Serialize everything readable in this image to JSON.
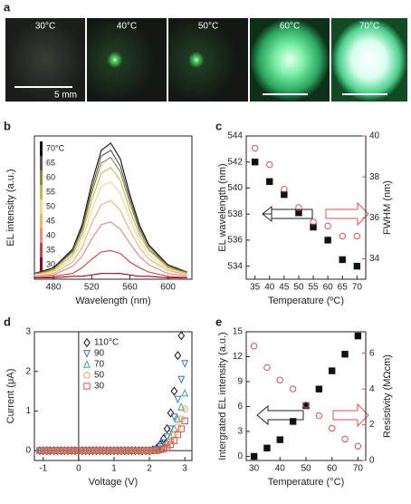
{
  "photos": {
    "panel": "a",
    "temperatures": [
      "30°C",
      "40°C",
      "50°C",
      "60°C",
      "70°C"
    ],
    "scale_bar": "5 mm"
  },
  "chart_data": [
    {
      "type": "line",
      "panel": "b",
      "x_label": "Wavelength (nm)",
      "y_label": "EL intensity (a.u.)",
      "x": [
        460,
        480,
        500,
        510,
        520,
        530,
        540,
        550,
        560,
        570,
        580,
        600,
        620
      ],
      "xlim": [
        460,
        625
      ],
      "xticks": [
        480,
        520,
        560,
        600
      ],
      "ylim": [
        0,
        100
      ],
      "legend": "colorbar",
      "series": [
        {
          "name": "70°C",
          "color": "#111111",
          "values": [
            4,
            8,
            21,
            38,
            67,
            90,
            95,
            84,
            59,
            38,
            24,
            10,
            5
          ]
        },
        {
          "name": "65",
          "color": "#555555",
          "values": [
            4,
            7,
            20,
            36,
            63,
            86,
            90,
            79,
            56,
            36,
            23,
            9,
            5
          ]
        },
        {
          "name": "60",
          "color": "#8a8a3a",
          "values": [
            3,
            7,
            19,
            34,
            60,
            81,
            85,
            75,
            53,
            34,
            21,
            9,
            4
          ]
        },
        {
          "name": "55",
          "color": "#c8b850",
          "values": [
            3,
            6,
            17,
            31,
            55,
            74,
            78,
            69,
            48,
            31,
            20,
            8,
            4
          ]
        },
        {
          "name": "50",
          "color": "#f0d888",
          "values": [
            3,
            5,
            15,
            27,
            48,
            65,
            68,
            60,
            42,
            27,
            17,
            7,
            3
          ]
        },
        {
          "name": "45",
          "color": "#f0b070",
          "values": [
            2,
            4,
            12,
            22,
            39,
            52,
            55,
            48,
            34,
            22,
            14,
            6,
            3
          ]
        },
        {
          "name": "40",
          "color": "#e88878",
          "values": [
            2,
            3,
            9,
            16,
            28,
            38,
            40,
            35,
            25,
            16,
            10,
            4,
            2
          ]
        },
        {
          "name": "35",
          "color": "#d04040",
          "values": [
            1,
            2,
            4,
            8,
            14,
            19,
            20,
            18,
            12,
            8,
            5,
            2,
            1
          ]
        },
        {
          "name": "30",
          "color": "#8b0a1a",
          "values": [
            1,
            1,
            2,
            2,
            3,
            4,
            4,
            4,
            3,
            2,
            2,
            1,
            1
          ]
        }
      ]
    },
    {
      "type": "scatter",
      "panel": "c",
      "x_label": "Temperature (ºC)",
      "y_label": "EL wavelength (nm)",
      "y2_label": "FWHM (nm)",
      "y2_color": "#d9534f",
      "x": [
        35,
        40,
        45,
        50,
        55,
        60,
        65,
        70
      ],
      "xlim": [
        32,
        73
      ],
      "xticks": [
        35,
        40,
        45,
        50,
        55,
        60,
        65,
        70
      ],
      "ylim": [
        533,
        544
      ],
      "yticks": [
        534,
        536,
        538,
        540,
        542,
        544
      ],
      "y2lim": [
        33,
        40
      ],
      "y2ticks": [
        34,
        36,
        38,
        40
      ],
      "series": [
        {
          "color": "#111111",
          "marker": "square",
          "filled": true,
          "values": [
            542,
            540.5,
            539.5,
            538.1,
            537,
            536,
            534.5,
            534
          ]
        },
        {
          "color": "#d9534f",
          "marker": "circle",
          "filled": false,
          "axis": "y2",
          "values": [
            39.4,
            38.6,
            37.4,
            36.5,
            35.8,
            35.6,
            35.1,
            35.1
          ]
        }
      ]
    },
    {
      "type": "scatter",
      "panel": "d",
      "x_label": "Voltage (V)",
      "y_label": "Current (μA)",
      "legend": "upper-left",
      "zero_lines": true,
      "x": [
        -1.1,
        -1.0,
        -0.9,
        -0.8,
        -0.7,
        -0.6,
        -0.5,
        -0.4,
        -0.3,
        -0.2,
        -0.1,
        0.0,
        0.1,
        0.2,
        0.3,
        0.4,
        0.5,
        0.6,
        0.7,
        0.8,
        0.9,
        1.0,
        1.1,
        1.2,
        1.3,
        1.4,
        1.5,
        1.6,
        1.7,
        1.8,
        1.9,
        2.0,
        2.1,
        2.2,
        2.3,
        2.4,
        2.5,
        2.6,
        2.7,
        2.8,
        2.9,
        3.0
      ],
      "xlim": [
        -1.25,
        3.2
      ],
      "xticks": [
        -1,
        0,
        1,
        2,
        3
      ],
      "ylim": [
        -0.25,
        3
      ],
      "yticks": [
        0,
        1,
        2,
        3
      ],
      "series": [
        {
          "name": "110°C",
          "color": "#111111",
          "marker": "diamond",
          "filled": false,
          "values": [
            0,
            0,
            0,
            0,
            0,
            0,
            0,
            0,
            0,
            0,
            0,
            0,
            0,
            0,
            0,
            0,
            0,
            0,
            0,
            0,
            0,
            0,
            0,
            0,
            0,
            0,
            0,
            0,
            0,
            0,
            0,
            0,
            0.02,
            0.05,
            0.15,
            0.3,
            0.55,
            0.95,
            1.5,
            2.4,
            2.9,
            null
          ]
        },
        {
          "name": "90",
          "color": "#3a6fd8",
          "marker": "triangle-down",
          "filled": false,
          "values": [
            0,
            0,
            0,
            0,
            0,
            0,
            0,
            0,
            0,
            0,
            0,
            0,
            0,
            0,
            0,
            0,
            0,
            0,
            0,
            0,
            0,
            0,
            0,
            0,
            0,
            0,
            0,
            0,
            0,
            0,
            0,
            0,
            0.01,
            0.03,
            0.1,
            0.2,
            0.35,
            0.55,
            0.85,
            1.3,
            1.8,
            2.2
          ]
        },
        {
          "name": "70",
          "color": "#3aaa8a",
          "marker": "triangle",
          "filled": false,
          "values": [
            0,
            0,
            0,
            0,
            0,
            0,
            0,
            0,
            0,
            0,
            0,
            0,
            0,
            0,
            0,
            0,
            0,
            0,
            0,
            0,
            0,
            0,
            0,
            0,
            0,
            0,
            0,
            0,
            0,
            0,
            0,
            0,
            0,
            0.02,
            0.05,
            0.1,
            0.2,
            0.35,
            0.55,
            0.8,
            1.1,
            1.45
          ]
        },
        {
          "name": "50",
          "color": "#f0a060",
          "marker": "circle",
          "filled": false,
          "values": [
            0,
            0,
            0,
            0,
            0,
            0,
            0,
            0,
            0,
            0,
            0,
            0,
            0,
            0,
            0,
            0,
            0,
            0,
            0,
            0,
            0,
            0,
            0,
            0,
            0,
            0,
            0,
            0,
            0,
            0,
            0,
            0,
            0,
            0.01,
            0.03,
            0.05,
            0.12,
            0.25,
            0.4,
            0.6,
            0.8,
            1.05
          ]
        },
        {
          "name": "30",
          "color": "#d9534f",
          "marker": "square",
          "filled": false,
          "values": [
            0,
            0,
            0,
            0,
            0,
            0,
            0,
            0,
            0,
            0,
            0,
            0,
            0,
            0,
            0,
            0,
            0,
            0,
            0,
            0,
            0,
            0,
            0,
            0,
            0,
            0,
            0,
            0,
            0,
            0,
            0,
            0,
            0,
            0,
            0.02,
            0.04,
            0.08,
            0.15,
            0.25,
            0.4,
            0.55,
            0.75
          ]
        }
      ]
    },
    {
      "type": "scatter",
      "panel": "e",
      "x_label": "Temperature (°C)",
      "y_label": "Intergrated EL intensity (a.u.)",
      "y2_label": "Resistivity (MΩcm)",
      "y2_color": "#d9534f",
      "x": [
        30,
        35,
        40,
        45,
        50,
        55,
        60,
        65,
        70
      ],
      "xlim": [
        27,
        73
      ],
      "xticks": [
        30,
        40,
        50,
        60,
        70
      ],
      "ylim": [
        -0.5,
        15
      ],
      "yticks": [
        0,
        3,
        6,
        9,
        12,
        15
      ],
      "y2lim": [
        0,
        7.2
      ],
      "y2ticks": [
        0,
        2,
        4,
        6
      ],
      "series": [
        {
          "color": "#111111",
          "marker": "square",
          "filled": true,
          "values": [
            0,
            1,
            2,
            4.2,
            6.1,
            8.1,
            10.3,
            12.3,
            14.5
          ]
        },
        {
          "color": "#d9534f",
          "marker": "circle",
          "filled": false,
          "axis": "y2",
          "values": [
            6.4,
            5.2,
            4.5,
            4,
            3.1,
            2.5,
            1.8,
            1.2,
            0.8
          ]
        }
      ]
    }
  ]
}
